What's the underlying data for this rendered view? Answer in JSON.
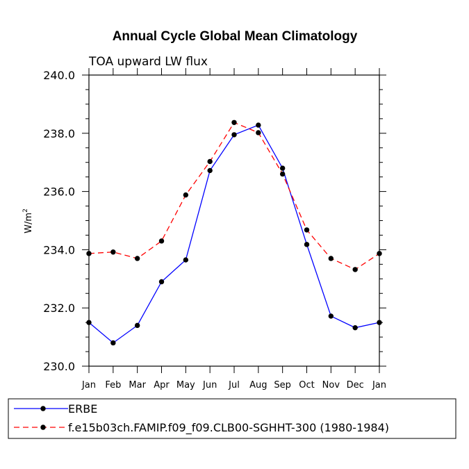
{
  "chart_data": {
    "type": "line",
    "title": "Annual Cycle Global Mean Climatology",
    "subtitle": "TOA upward LW flux",
    "ylabel": "W/m",
    "ylabel_sup": "2",
    "ylim": [
      230.0,
      240.0
    ],
    "yticks": [
      "230.0",
      "232.0",
      "234.0",
      "236.0",
      "238.0",
      "240.0"
    ],
    "categories": [
      "Jan",
      "Feb",
      "Mar",
      "Apr",
      "May",
      "Jun",
      "Jul",
      "Aug",
      "Sep",
      "Oct",
      "Nov",
      "Dec",
      "Jan"
    ],
    "grid": false,
    "legend_position": "bottom",
    "series": [
      {
        "name": "ERBE",
        "color": "#0000ff",
        "style": "solid",
        "values": [
          231.5,
          230.8,
          231.4,
          232.9,
          233.65,
          236.72,
          237.95,
          238.28,
          236.8,
          234.18,
          231.72,
          231.32,
          231.5
        ]
      },
      {
        "name": "f.e15b03ch.FAMIP.f09_f09.CLB00-SGHHT-300 (1980-1984)",
        "color": "#ff0000",
        "style": "dashed",
        "values": [
          233.87,
          233.92,
          233.7,
          234.3,
          235.88,
          237.03,
          238.37,
          238.02,
          236.6,
          234.68,
          233.7,
          233.32,
          233.87
        ]
      }
    ]
  }
}
